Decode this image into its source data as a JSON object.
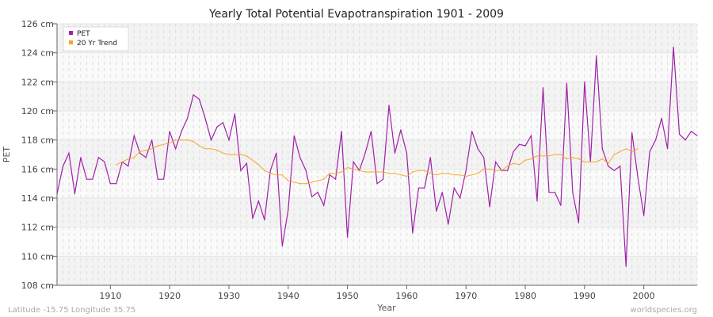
{
  "chart_data": {
    "type": "line",
    "title": "Yearly Total Potential Evapotranspiration 1901 - 2009",
    "xlabel": "Year",
    "ylabel": "PET",
    "xlim": [
      1901,
      2009
    ],
    "ylim": [
      108,
      126
    ],
    "x_ticks": [
      1910,
      1920,
      1930,
      1940,
      1950,
      1960,
      1970,
      1980,
      1990,
      2000
    ],
    "y_ticks": [
      108,
      110,
      112,
      114,
      116,
      118,
      120,
      122,
      124,
      126
    ],
    "y_tick_labels": [
      "108 cm",
      "110 cm",
      "112 cm",
      "114 cm",
      "116 cm",
      "118 cm",
      "120 cm",
      "122 cm",
      "124 cm",
      "126 cm"
    ],
    "grid": true,
    "legend_position": "top-left",
    "series": [
      {
        "name": "PET",
        "color": "#a020a8",
        "start_year": 1901,
        "values": [
          114.3,
          116.2,
          117.1,
          114.3,
          116.8,
          115.3,
          115.3,
          116.8,
          116.5,
          115.0,
          115.0,
          116.5,
          116.2,
          118.3,
          117.1,
          116.8,
          118.0,
          115.3,
          115.3,
          118.6,
          117.4,
          118.6,
          119.5,
          121.1,
          120.8,
          119.5,
          118.0,
          118.9,
          119.2,
          118.0,
          119.8,
          115.9,
          116.4,
          112.6,
          113.8,
          112.5,
          115.9,
          117.1,
          110.7,
          113.2,
          118.3,
          116.8,
          115.9,
          114.1,
          114.4,
          113.5,
          115.6,
          115.3,
          118.6,
          111.3,
          116.5,
          115.9,
          117.1,
          118.6,
          115.0,
          115.3,
          120.4,
          117.1,
          118.7,
          117.1,
          111.6,
          114.7,
          114.7,
          116.8,
          113.1,
          114.4,
          112.2,
          114.7,
          114.0,
          115.9,
          118.6,
          117.4,
          116.8,
          113.4,
          116.5,
          115.9,
          115.9,
          117.2,
          117.7,
          117.6,
          118.3,
          113.8,
          121.6,
          114.4,
          114.4,
          113.5,
          121.9,
          114.4,
          112.3,
          122.0,
          116.5,
          123.8,
          117.4,
          116.2,
          115.9,
          116.2,
          109.3,
          118.5,
          115.4,
          112.8,
          117.2,
          118.0,
          119.5,
          117.4,
          124.4,
          118.4,
          118.0,
          118.6,
          118.3
        ]
      },
      {
        "name": "20 Yr Trend",
        "color": "#f5a623",
        "start_year": 1911,
        "values": [
          116.3,
          116.5,
          116.7,
          116.8,
          117.2,
          117.3,
          117.4,
          117.6,
          117.7,
          117.8,
          118.0,
          118.0,
          118.0,
          117.9,
          117.6,
          117.4,
          117.4,
          117.3,
          117.1,
          117.0,
          117.0,
          117.0,
          116.9,
          116.6,
          116.3,
          115.9,
          115.7,
          115.6,
          115.6,
          115.2,
          115.1,
          115.0,
          115.0,
          115.1,
          115.2,
          115.3,
          115.7,
          115.7,
          115.8,
          116.1,
          116.0,
          115.9,
          115.8,
          115.8,
          115.8,
          115.8,
          115.7,
          115.7,
          115.6,
          115.5,
          115.8,
          115.9,
          115.9,
          115.7,
          115.6,
          115.7,
          115.7,
          115.6,
          115.6,
          115.5,
          115.6,
          115.7,
          116.0,
          116.0,
          115.9,
          115.9,
          116.2,
          116.4,
          116.3,
          116.6,
          116.7,
          116.9,
          116.9,
          116.9,
          117.0,
          117.0,
          116.7,
          116.8,
          116.7,
          116.5,
          116.5,
          116.5,
          116.7,
          116.4,
          117.0,
          117.2,
          117.4,
          117.2,
          117.4
        ]
      }
    ]
  },
  "footer": {
    "location": "Latitude -15.75 Longitude 35.75",
    "credit": "worldspecies.org"
  }
}
